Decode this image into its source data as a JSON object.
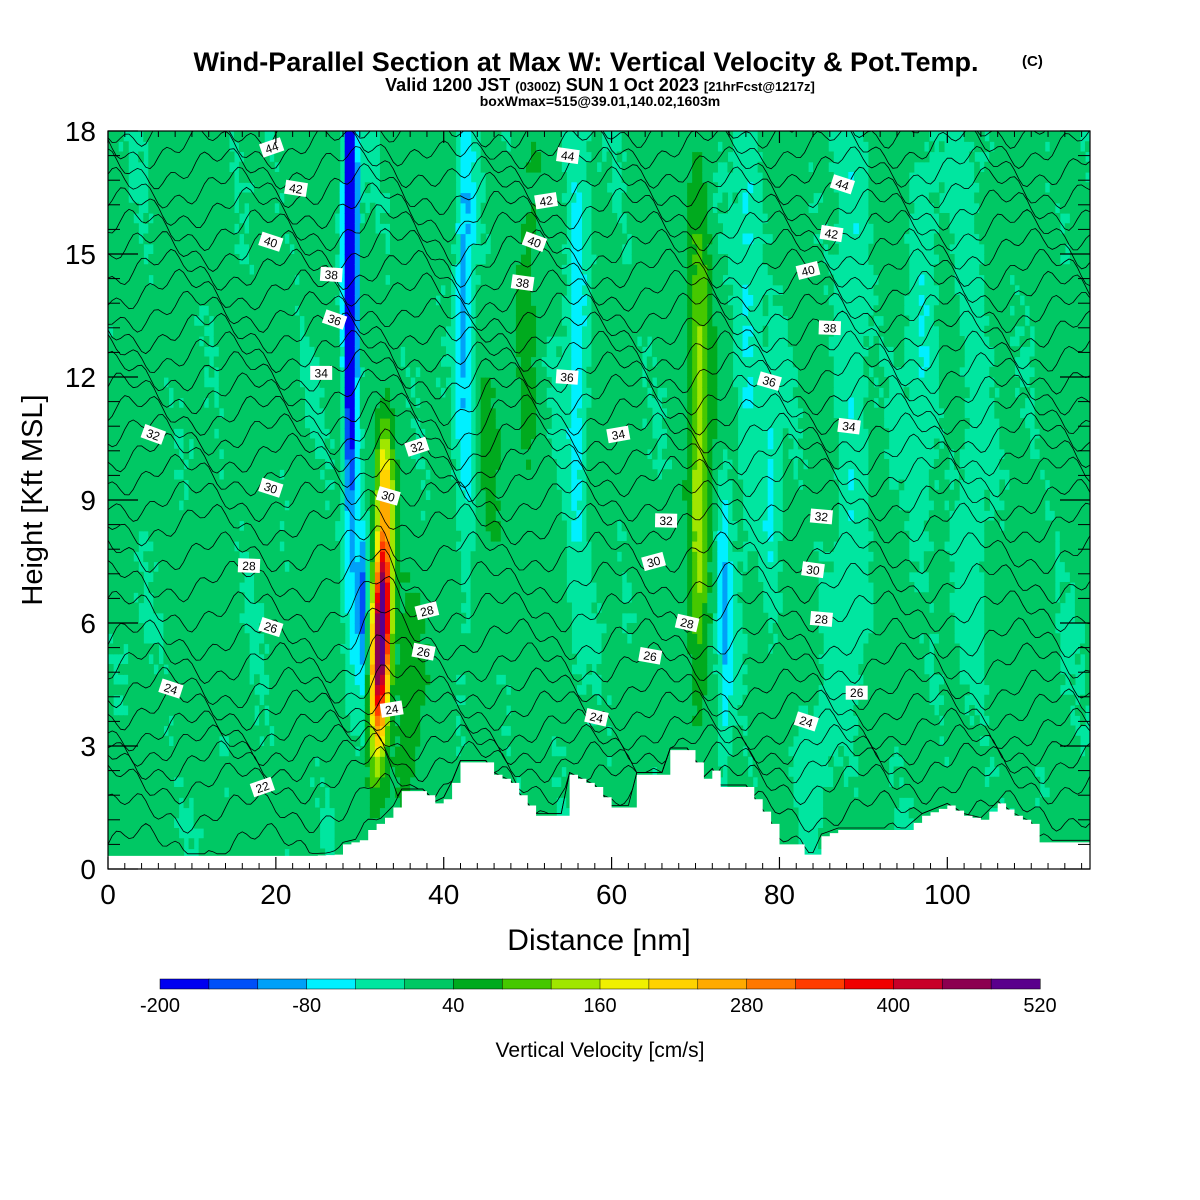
{
  "chart_data": {
    "type": "heatmap",
    "title": "Wind-Parallel Section at Max W: Vertical Velocity & Pot.Temp.",
    "title_mark": "(C)",
    "subtitle_parts": [
      "Valid 1200 JST ",
      "(0300Z)",
      " SUN 1 Oct 2023 ",
      "[21hrFcst@1217z]"
    ],
    "subtitle2": "boxWmax=515@39.01,140.02,1603m",
    "xlabel": "Distance [nm]",
    "ylabel": "Height [Kft MSL]",
    "xlim": [
      0,
      117
    ],
    "ylim": [
      0,
      18
    ],
    "x_ticks": [
      0,
      20,
      40,
      60,
      80,
      100
    ],
    "y_ticks": [
      0,
      3,
      6,
      9,
      12,
      15,
      18
    ],
    "colorbar": {
      "label": "Vertical Velocity [cm/s]",
      "min": -200,
      "step": 40,
      "tick_labels": [
        -200,
        -80,
        40,
        160,
        280,
        400,
        520
      ],
      "colors": [
        "#0000f0",
        "#0050f8",
        "#00a0f8",
        "#00f0ff",
        "#00e6a0",
        "#00c864",
        "#00aa1e",
        "#46c800",
        "#a0e600",
        "#f0f000",
        "#ffd200",
        "#ffaa00",
        "#ff7800",
        "#ff3c00",
        "#f00000",
        "#c80028",
        "#8c0050",
        "#5a008c"
      ]
    },
    "theta_contour_labels": [
      {
        "x": 19.5,
        "z": 17.6,
        "t": "44"
      },
      {
        "x": 54.8,
        "z": 17.4,
        "t": "44"
      },
      {
        "x": 87.5,
        "z": 16.7,
        "t": "44"
      },
      {
        "x": 22.4,
        "z": 16.6,
        "t": "42"
      },
      {
        "x": 52.2,
        "z": 16.3,
        "t": "42"
      },
      {
        "x": 86.2,
        "z": 15.5,
        "t": "42"
      },
      {
        "x": 19.4,
        "z": 15.3,
        "t": "40"
      },
      {
        "x": 50.8,
        "z": 15.3,
        "t": "40"
      },
      {
        "x": 83.4,
        "z": 14.6,
        "t": "40"
      },
      {
        "x": 26.6,
        "z": 14.5,
        "t": "38"
      },
      {
        "x": 49.4,
        "z": 14.3,
        "t": "38"
      },
      {
        "x": 86.0,
        "z": 13.2,
        "t": "38"
      },
      {
        "x": 27.0,
        "z": 13.4,
        "t": "36"
      },
      {
        "x": 54.7,
        "z": 12.0,
        "t": "36"
      },
      {
        "x": 78.8,
        "z": 11.9,
        "t": "36"
      },
      {
        "x": 25.4,
        "z": 12.1,
        "t": "34"
      },
      {
        "x": 60.8,
        "z": 10.6,
        "t": "34"
      },
      {
        "x": 88.3,
        "z": 10.8,
        "t": "34"
      },
      {
        "x": 5.4,
        "z": 10.6,
        "t": "32"
      },
      {
        "x": 36.8,
        "z": 10.3,
        "t": "32"
      },
      {
        "x": 66.5,
        "z": 8.5,
        "t": "32"
      },
      {
        "x": 85.0,
        "z": 8.6,
        "t": "32"
      },
      {
        "x": 19.4,
        "z": 9.3,
        "t": "30"
      },
      {
        "x": 33.4,
        "z": 9.1,
        "t": "30"
      },
      {
        "x": 65.0,
        "z": 7.5,
        "t": "30"
      },
      {
        "x": 84.0,
        "z": 7.3,
        "t": "30"
      },
      {
        "x": 16.8,
        "z": 7.4,
        "t": "28"
      },
      {
        "x": 38.0,
        "z": 6.3,
        "t": "28"
      },
      {
        "x": 69.0,
        "z": 6.0,
        "t": "28"
      },
      {
        "x": 85.0,
        "z": 6.1,
        "t": "28"
      },
      {
        "x": 19.4,
        "z": 5.9,
        "t": "26"
      },
      {
        "x": 37.6,
        "z": 5.3,
        "t": "26"
      },
      {
        "x": 64.6,
        "z": 5.2,
        "t": "26"
      },
      {
        "x": 89.2,
        "z": 4.3,
        "t": "26"
      },
      {
        "x": 7.5,
        "z": 4.4,
        "t": "24"
      },
      {
        "x": 33.8,
        "z": 3.9,
        "t": "24"
      },
      {
        "x": 58.2,
        "z": 3.7,
        "t": "24"
      },
      {
        "x": 83.2,
        "z": 3.6,
        "t": "24"
      },
      {
        "x": 18.4,
        "z": 2.0,
        "t": "22"
      }
    ]
  }
}
